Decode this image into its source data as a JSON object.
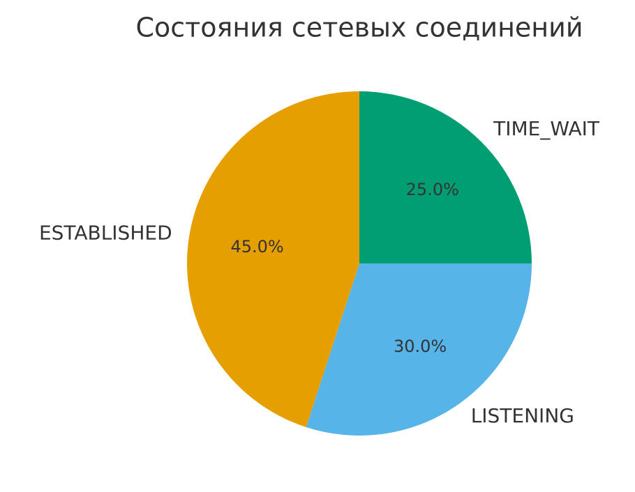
{
  "chart_data": {
    "type": "pie",
    "title": "Состояния сетевых соединений",
    "categories": [
      "TIME_WAIT",
      "LISTENING",
      "ESTABLISHED"
    ],
    "values": [
      25,
      30,
      45
    ],
    "value_labels": [
      "25.0%",
      "30.0%",
      "45.0%"
    ],
    "colors": [
      "#029e73",
      "#56b4e9",
      "#e69f00"
    ]
  }
}
